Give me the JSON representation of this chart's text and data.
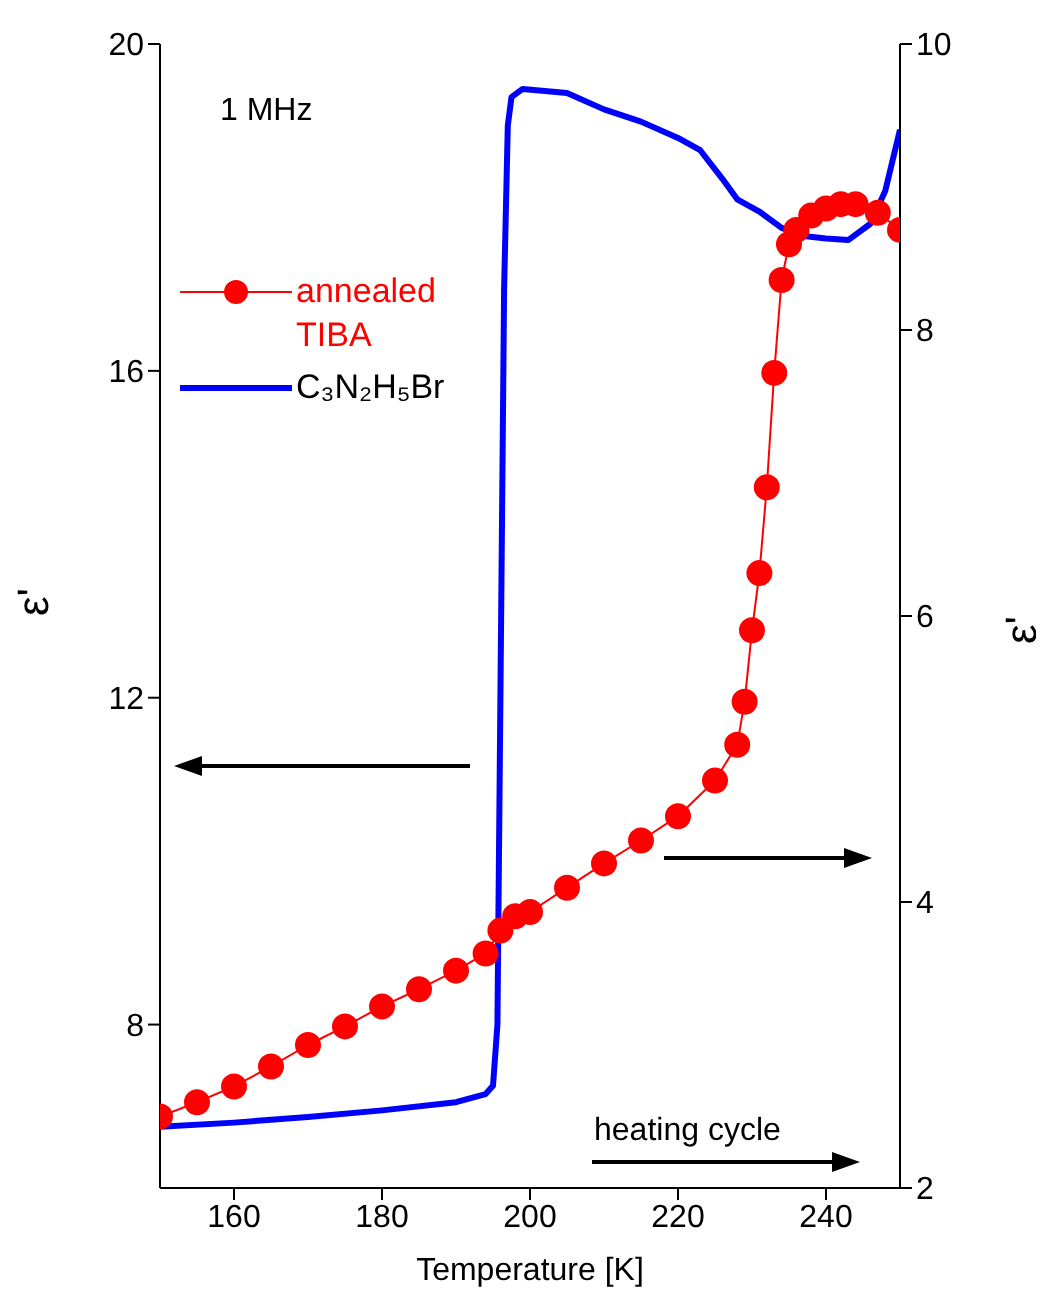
{
  "chart_data": {
    "type": "line",
    "xlabel": "Temperature [K]",
    "ylabel": "ε'",
    "y2label": "ε'",
    "xlim": [
      150,
      250
    ],
    "xticks": [
      160,
      180,
      200,
      220,
      240
    ],
    "ylim": [
      6,
      20
    ],
    "yticks": [
      8,
      12,
      16,
      20
    ],
    "y2lim": [
      2,
      10
    ],
    "y2ticks": [
      2,
      4,
      6,
      8,
      10
    ],
    "grid": false,
    "legend": "top left",
    "annotations": [
      "1 MHz",
      "heating cycle"
    ],
    "series": [
      {
        "name": "annealed TIBA",
        "color": "#ff0000",
        "axis": "y2",
        "marker": "circle",
        "x": [
          150,
          155,
          160,
          165,
          170,
          175,
          180,
          185,
          190,
          194,
          196,
          198,
          200,
          205,
          210,
          215,
          220,
          225,
          228,
          229,
          230,
          231,
          232,
          233,
          234,
          235,
          236,
          238,
          240,
          242,
          244,
          247,
          250
        ],
        "values": [
          2.5,
          2.6,
          2.71,
          2.85,
          3.0,
          3.13,
          3.27,
          3.39,
          3.52,
          3.64,
          3.8,
          3.9,
          3.93,
          4.1,
          4.27,
          4.43,
          4.6,
          4.85,
          5.1,
          5.4,
          5.9,
          6.3,
          6.9,
          7.7,
          8.35,
          8.6,
          8.7,
          8.8,
          8.85,
          8.88,
          8.88,
          8.82,
          8.7
        ]
      },
      {
        "name": "C₃N₂H₅Br",
        "color": "#0000ff",
        "axis": "y",
        "marker": "none",
        "x": [
          150,
          160,
          170,
          180,
          190,
          194,
          195,
          195.6,
          196,
          196.5,
          197,
          197.5,
          199,
          205,
          210,
          215,
          220,
          223,
          226,
          228,
          231,
          234,
          237,
          240,
          243,
          246,
          248,
          250
        ],
        "values": [
          6.75,
          6.8,
          6.87,
          6.95,
          7.05,
          7.15,
          7.25,
          8,
          12,
          17,
          19.0,
          19.35,
          19.45,
          19.4,
          19.2,
          19.05,
          18.85,
          18.7,
          18.35,
          18.1,
          17.95,
          17.75,
          17.65,
          17.62,
          17.6,
          17.8,
          18.2,
          18.95
        ]
      }
    ]
  }
}
